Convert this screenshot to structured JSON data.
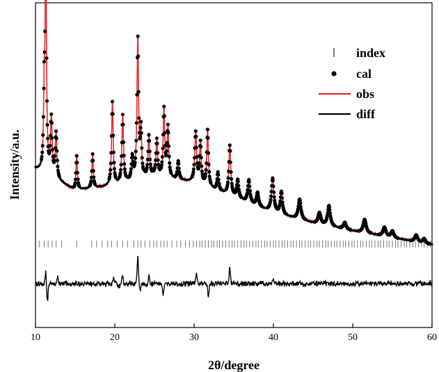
{
  "chart_data": {
    "type": "line",
    "xlabel": "2θ/degree",
    "ylabel": "Intensity/a.u.",
    "xlim": [
      10,
      60
    ],
    "x_ticks": [
      10,
      20,
      30,
      40,
      50,
      60
    ],
    "y_ticks_shown": false,
    "grid": false,
    "legend_position": "top-right",
    "colors": {
      "obs": "#e8262b",
      "cal": "#000000",
      "diff": "#000000",
      "index": "#777777"
    },
    "legend": [
      {
        "key": "index",
        "label": "index",
        "marker": "tick"
      },
      {
        "key": "cal",
        "label": "cal",
        "marker": "dot"
      },
      {
        "key": "obs",
        "label": "obs",
        "marker": "line"
      },
      {
        "key": "diff",
        "label": "diff",
        "marker": "line"
      }
    ],
    "pattern": {
      "background": [
        [
          10,
          0.335
        ],
        [
          15,
          0.24
        ],
        [
          20,
          0.26
        ],
        [
          25,
          0.3
        ],
        [
          30,
          0.275
        ],
        [
          35,
          0.21
        ],
        [
          40,
          0.14
        ],
        [
          45,
          0.095
        ],
        [
          50,
          0.06
        ],
        [
          55,
          0.03
        ],
        [
          60,
          0.0
        ]
      ],
      "peaks": [
        {
          "pos": 11.3,
          "height": 0.95,
          "width": 0.1
        },
        {
          "pos": 11.1,
          "height": 0.3,
          "width": 0.1
        },
        {
          "pos": 12.0,
          "height": 0.25,
          "width": 0.12
        },
        {
          "pos": 12.6,
          "height": 0.2,
          "width": 0.12
        },
        {
          "pos": 15.2,
          "height": 0.15,
          "width": 0.1
        },
        {
          "pos": 17.2,
          "height": 0.15,
          "width": 0.1
        },
        {
          "pos": 19.7,
          "height": 0.37,
          "width": 0.12
        },
        {
          "pos": 21.0,
          "height": 0.3,
          "width": 0.12
        },
        {
          "pos": 22.2,
          "height": 0.1,
          "width": 0.12
        },
        {
          "pos": 22.9,
          "height": 0.62,
          "width": 0.12
        },
        {
          "pos": 23.3,
          "height": 0.2,
          "width": 0.1
        },
        {
          "pos": 24.3,
          "height": 0.18,
          "width": 0.12
        },
        {
          "pos": 25.3,
          "height": 0.16,
          "width": 0.12
        },
        {
          "pos": 26.2,
          "height": 0.3,
          "width": 0.12
        },
        {
          "pos": 26.7,
          "height": 0.22,
          "width": 0.12
        },
        {
          "pos": 28.0,
          "height": 0.08,
          "width": 0.12
        },
        {
          "pos": 30.2,
          "height": 0.22,
          "width": 0.14
        },
        {
          "pos": 30.8,
          "height": 0.18,
          "width": 0.12
        },
        {
          "pos": 31.7,
          "height": 0.25,
          "width": 0.12
        },
        {
          "pos": 33.0,
          "height": 0.08,
          "width": 0.12
        },
        {
          "pos": 34.5,
          "height": 0.22,
          "width": 0.14
        },
        {
          "pos": 35.5,
          "height": 0.08,
          "width": 0.14
        },
        {
          "pos": 36.9,
          "height": 0.1,
          "width": 0.16
        },
        {
          "pos": 38.0,
          "height": 0.06,
          "width": 0.16
        },
        {
          "pos": 39.9,
          "height": 0.15,
          "width": 0.18
        },
        {
          "pos": 41.0,
          "height": 0.1,
          "width": 0.16
        },
        {
          "pos": 43.3,
          "height": 0.09,
          "width": 0.2
        },
        {
          "pos": 45.8,
          "height": 0.05,
          "width": 0.2
        },
        {
          "pos": 47.0,
          "height": 0.09,
          "width": 0.2
        },
        {
          "pos": 49.0,
          "height": 0.03,
          "width": 0.2
        },
        {
          "pos": 51.5,
          "height": 0.06,
          "width": 0.22
        },
        {
          "pos": 54.0,
          "height": 0.04,
          "width": 0.22
        },
        {
          "pos": 55.0,
          "height": 0.03,
          "width": 0.2
        },
        {
          "pos": 58.0,
          "height": 0.03,
          "width": 0.22
        },
        {
          "pos": 59.0,
          "height": 0.02,
          "width": 0.2
        }
      ],
      "diff_features": [
        {
          "pos": 11.3,
          "amp": 0.06
        },
        {
          "pos": 11.5,
          "amp": -0.09
        },
        {
          "pos": 12.8,
          "amp": 0.03
        },
        {
          "pos": 19.8,
          "amp": 0.03
        },
        {
          "pos": 20.5,
          "amp": -0.02
        },
        {
          "pos": 21.0,
          "amp": 0.04
        },
        {
          "pos": 22.9,
          "amp": 0.14
        },
        {
          "pos": 23.2,
          "amp": -0.04
        },
        {
          "pos": 24.3,
          "amp": 0.04
        },
        {
          "pos": 26.1,
          "amp": -0.05
        },
        {
          "pos": 30.3,
          "amp": 0.06
        },
        {
          "pos": 31.8,
          "amp": -0.07
        },
        {
          "pos": 34.5,
          "amp": 0.08
        },
        {
          "pos": 40.0,
          "amp": 0.03
        }
      ],
      "index_positions": [
        10.5,
        11.1,
        11.6,
        12.1,
        12.6,
        13.3,
        15.2,
        17.1,
        17.7,
        18.4,
        19.1,
        19.6,
        20.3,
        21.0,
        21.6,
        22.4,
        22.9,
        23.3,
        23.8,
        24.4,
        24.9,
        25.3,
        25.8,
        26.2,
        26.6,
        27.2,
        27.8,
        28.3,
        28.9,
        29.4,
        29.9,
        30.3,
        30.7,
        31.0,
        31.4,
        31.8,
        32.2,
        32.5,
        32.9,
        33.2,
        33.6,
        34.0,
        34.4,
        34.8,
        35.1,
        35.5,
        35.9,
        36.3,
        36.6,
        37.0,
        37.4,
        37.8,
        38.1,
        38.5,
        38.9,
        39.2,
        39.6,
        40.0,
        40.3,
        40.7,
        41.1,
        41.4,
        41.8,
        42.2,
        42.5,
        42.9,
        43.3,
        43.6,
        44.0,
        44.4,
        44.7,
        45.1,
        45.5,
        45.8,
        46.2,
        46.6,
        46.9,
        47.3,
        47.7,
        48.0,
        48.4,
        48.8,
        49.1,
        49.5,
        49.9,
        50.2,
        50.6,
        51.0,
        51.3,
        51.7,
        52.1,
        52.4,
        52.8,
        53.2,
        53.5,
        53.9,
        54.3,
        54.6,
        55.0,
        55.4,
        55.7,
        56.1,
        56.5,
        56.8,
        57.2,
        57.6,
        57.9,
        58.3,
        58.7,
        59.0,
        59.4,
        59.8
      ]
    }
  }
}
